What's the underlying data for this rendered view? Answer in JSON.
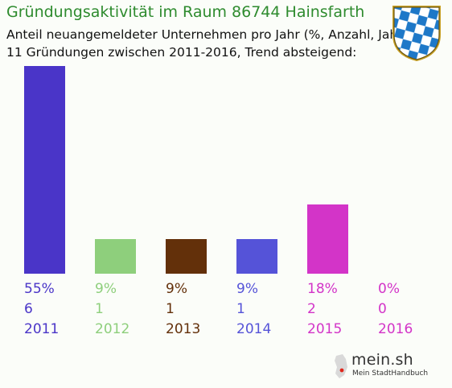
{
  "title": "Gründungsaktivität im Raum 86744 Hainsfarth",
  "subtitle_line1": "Anteil neuangemeldeter Unternehmen pro Jahr (%, Anzahl, Jahr)",
  "subtitle_line2": "11 Gründungen zwischen 2011-2016, Trend absteigend:",
  "logo": {
    "name": "mein.sh",
    "tagline": "Mein StadtHandbuch"
  },
  "chart_data": {
    "type": "bar",
    "categories": [
      "2011",
      "2012",
      "2013",
      "2014",
      "2015",
      "2016"
    ],
    "values": [
      6,
      1,
      1,
      1,
      2,
      0
    ],
    "percent_labels": [
      "55%",
      "9%",
      "9%",
      "9%",
      "18%",
      "0%"
    ],
    "count_labels": [
      "6",
      "1",
      "1",
      "1",
      "2",
      "0"
    ],
    "colors": [
      "#4a35c8",
      "#8ecf7c",
      "#63300a",
      "#5553d8",
      "#d334c8",
      "#d334c8"
    ],
    "ylim": [
      0,
      6
    ],
    "grid": false
  }
}
